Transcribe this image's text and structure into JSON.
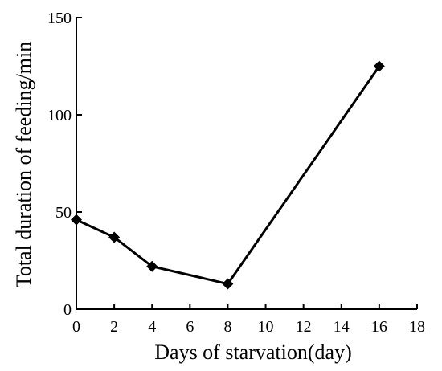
{
  "chart_data": {
    "type": "line",
    "title": "",
    "xlabel": "Days of starvation(day)",
    "ylabel": "Total duration of feeding/min",
    "xlim": [
      0,
      18
    ],
    "ylim": [
      0,
      150
    ],
    "x_ticks": [
      0,
      2,
      4,
      6,
      8,
      10,
      12,
      14,
      16,
      18
    ],
    "y_ticks": [
      0,
      50,
      100,
      150
    ],
    "grid": false,
    "legend": "none",
    "marker": "diamond",
    "series": [
      {
        "x": [
          0,
          2,
          4,
          8,
          16
        ],
        "values": [
          46,
          37,
          22,
          13,
          125
        ]
      }
    ],
    "colors": {
      "line": "#000000",
      "marker": "#000000"
    }
  }
}
